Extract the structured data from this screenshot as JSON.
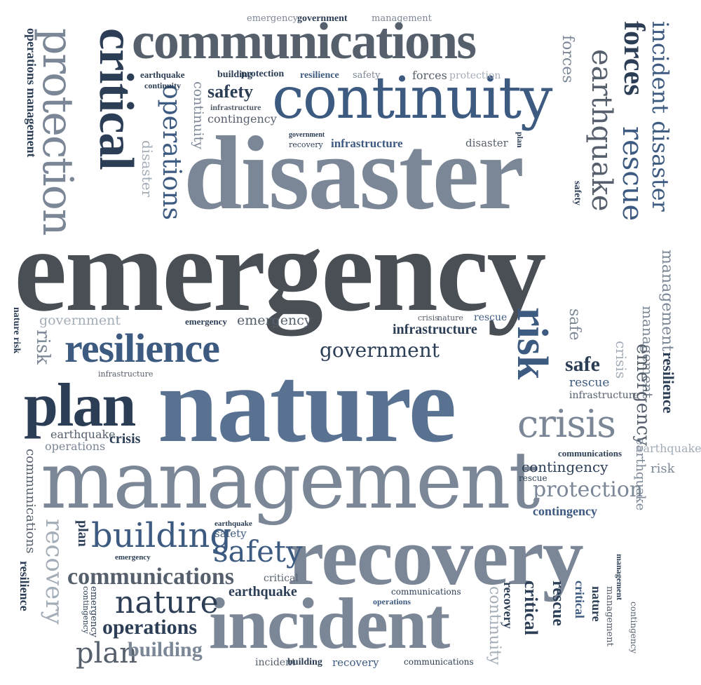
{
  "words": {
    "emergency_big": "emergency",
    "disaster_big": "disaster",
    "nature_big": "nature",
    "management_big": "management",
    "recovery_big": "recovery",
    "incident_big": "incident",
    "communications_top": "communications",
    "continuity_top": "continuity",
    "critical_left": "critical",
    "protection_left": "protection",
    "operations_management_left": "operations management",
    "forces_right": "forces",
    "incident_disaster_right": "incident disaster",
    "earthquake_right": "earthquake",
    "rescue_right": "rescue",
    "resilience_mid": "resilience",
    "plan_mid": "plan",
    "risk_mid": "risk",
    "crisis_right": "crisis",
    "government_mid": "government",
    "infrastructure_mid": "infrastructure",
    "infrastructure_top": "infrastructure",
    "safety_top": "safety",
    "contingency_top": "contingency",
    "building_protection": "building",
    "protection_small": "protection",
    "resilience_small": "resilience",
    "safety_small": "safety",
    "forces_small": "forces",
    "protection_small2": "protection",
    "earthquake_small": "earthquake",
    "continuity_small": "continuity",
    "operations_vert": "operations",
    "continuity_vert": "continuity",
    "disaster_vert": "disaster",
    "emergency_top": "emergency",
    "government_top": "government",
    "management_top": "management",
    "forces_top": "forces",
    "government_small": "government",
    "recovery_small": "recovery",
    "disaster_small": "disaster",
    "plan_small": "plan",
    "management_right": "management",
    "management_right2": "management",
    "resilience_right": "resilience",
    "emergency_right": "emergency",
    "risk_right": "risk",
    "earthquake_right2": "earthquake",
    "safe_mid": "safe",
    "safe_mid2": "safe",
    "rescue_mid": "rescue",
    "infrastructure_right": "infrastructure",
    "rescue_small": "rescue",
    "nature_small": "nature",
    "crisis_small": "crisis",
    "emergency_mid": "emergency",
    "emergency_mid2": "emergency",
    "government_left": "government",
    "risk_left": "risk",
    "nature_risk_left": "nature risk",
    "infrastructure_left": "infrastructure",
    "earthquake_left": "earthquake",
    "operations_left": "operations",
    "crisis_left": "crisis",
    "communications_left": "communications",
    "recovery_left": "recovery",
    "resilience_left": "resilience",
    "communications_bottom": "communications",
    "nature_bottom": "nature",
    "operations_bottom": "operations",
    "plan_bottom": "plan",
    "building_bottom": "building",
    "building_mid": "building",
    "safety_mid": "safety",
    "safety_mid2": "safety",
    "plan_mid_vert": "plan",
    "emergency_small": "emergency",
    "earthquake_mid": "earthquake",
    "critical_mid": "critical",
    "earthquake_bottom": "earthquake",
    "communications_small": "communications",
    "operations_small": "operations",
    "incident_small": "incident",
    "building_small": "building",
    "recovery_small2": "recovery",
    "communications_small2": "communications",
    "contingency_right": "contingency",
    "protection_right": "protection",
    "communications_right": "communications",
    "contingency_right2": "contingency",
    "rescue_right2": "rescue",
    "earthquake_right3": "earthquake",
    "risk_right2": "risk",
    "critical_bottom": "critical",
    "recovery_bottom_v": "recovery",
    "rescue_bottom_v": "rescue",
    "critical_bottom_v2": "critical",
    "nature_bottom_v": "nature",
    "management_bottom_v": "management",
    "contingency_bottom_v": "contingency",
    "continuity_bottom_v": "continuity",
    "management_bottom_v2": "management",
    "emergency_left_v": "emergency",
    "contingency_left_v": "contingency"
  },
  "palette": {
    "navy": "#2c3e55",
    "blue": "#3d5a80",
    "charcoal": "#56606d",
    "slate": "#7b8796",
    "light": "#a3adb8",
    "dark": "#4a4e55"
  }
}
